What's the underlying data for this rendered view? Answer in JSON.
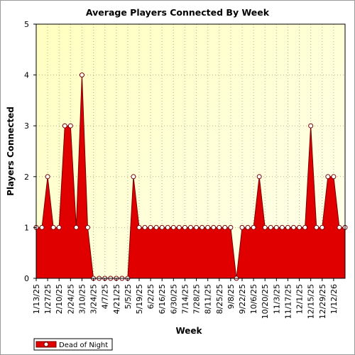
{
  "chart_data": {
    "type": "area",
    "title": "Average Players Connected By Week",
    "xlabel": "Week",
    "ylabel": "Players Connected",
    "ylim": [
      0,
      5
    ],
    "yticks": [
      0,
      1,
      2,
      3,
      4,
      5
    ],
    "grid": true,
    "legend_position": "bottom-left",
    "x_tick_labels": [
      "1/13/25",
      "1/27/25",
      "2/10/25",
      "2/24/25",
      "3/10/25",
      "3/24/25",
      "4/7/25",
      "4/21/25",
      "5/5/25",
      "5/19/25",
      "6/2/25",
      "6/16/25",
      "6/30/25",
      "7/14/25",
      "7/28/25",
      "8/11/25",
      "8/25/25",
      "9/8/25",
      "9/22/25",
      "10/6/25",
      "10/20/25",
      "11/3/25",
      "11/17/25",
      "12/1/25",
      "12/15/25",
      "12/29/25",
      "1/12/26"
    ],
    "series": [
      {
        "name": "Dead of Night",
        "color": "#e00000",
        "line_color": "#7a0000",
        "values": [
          1,
          1,
          2,
          1,
          1,
          3,
          3,
          1,
          4,
          1,
          0,
          0,
          0,
          0,
          0,
          0,
          0,
          2,
          1,
          1,
          1,
          1,
          1,
          1,
          1,
          1,
          1,
          1,
          1,
          1,
          1,
          1,
          1,
          1,
          1,
          0,
          1,
          1,
          1,
          2,
          1,
          1,
          1,
          1,
          1,
          1,
          1,
          1,
          3,
          1,
          1,
          2,
          2,
          1,
          1
        ]
      }
    ],
    "colors": {
      "plot_background_top": "#ffffc0",
      "plot_background_bottom": "#ffffee",
      "grid": "#b4b48c",
      "marker_fill": "#ffffff"
    }
  }
}
